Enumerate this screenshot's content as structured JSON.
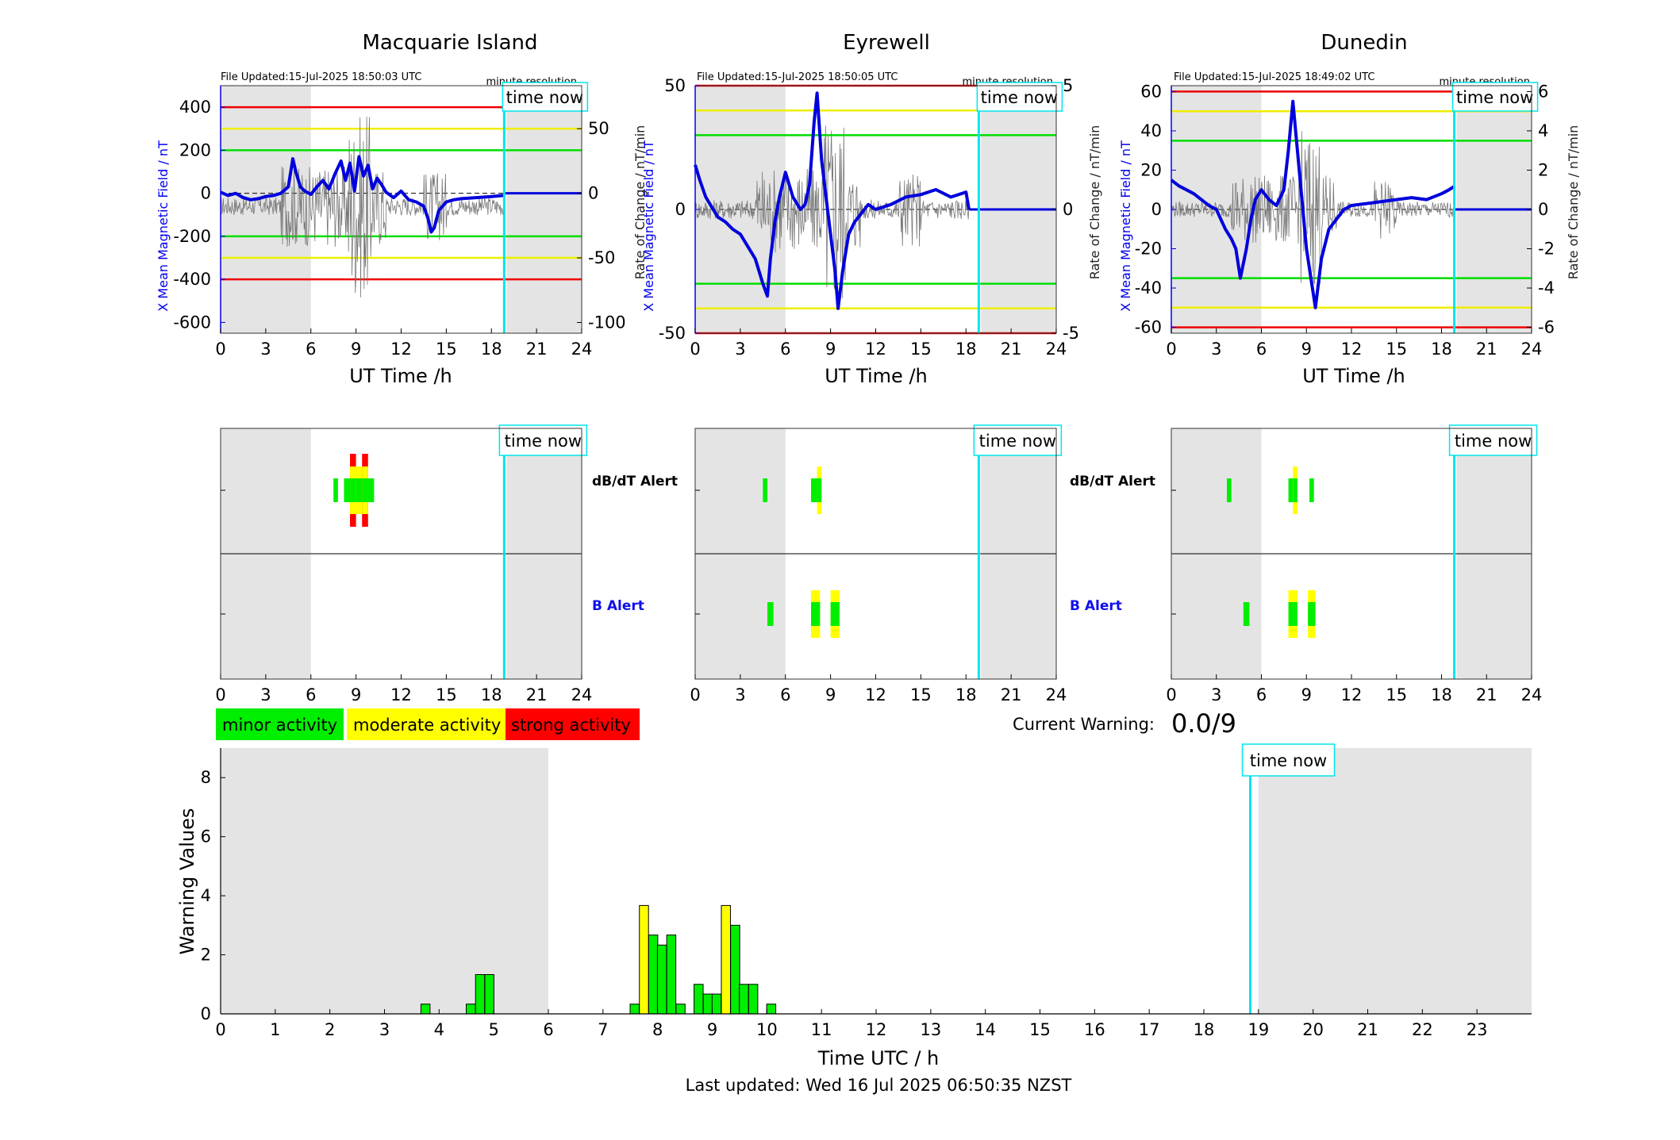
{
  "time_now_label": "time now",
  "minute_resolution_label": "minute resolution",
  "ut_xlabel": "UT Time /h",
  "left_ylabel": "X Mean Magnetic Field / nT",
  "right_ylabel": "Rate of Change / nT/min",
  "alert_labels": {
    "dbdt": "dB/dT Alert",
    "b": "B Alert"
  },
  "legend": [
    {
      "label": "minor activity",
      "color": "#00ee00"
    },
    {
      "label": "moderate activity",
      "color": "#ffff00"
    },
    {
      "label": "strong activity",
      "color": "#ff0000"
    }
  ],
  "current_warning": {
    "label": "Current Warning:",
    "value": "0.0/9"
  },
  "last_updated": "Last updated: Wed 16 Jul 2025 06:50:35 NZST",
  "colors": {
    "field": "#0000dd",
    "time_now": "#00e5ee",
    "night_shade": "#e4e4e4",
    "red": "#ee0000",
    "yellow": "#eeee00",
    "green": "#00dd00"
  },
  "chart_data": [
    {
      "type": "line",
      "title": "Macquarie Island",
      "file_updated": "File Updated:15-Jul-2025 18:50:03 UTC",
      "xlabel": "UT Time /h",
      "ylabel": "X Mean Magnetic Field / nT",
      "y2label": "Rate of Change / nT/min",
      "xlim": [
        0,
        24
      ],
      "ylim": [
        -650,
        500
      ],
      "y2lim": [
        -108.3,
        83.3
      ],
      "xticks": [
        0,
        3,
        6,
        9,
        12,
        15,
        18,
        21,
        24
      ],
      "yticks": [
        400,
        200,
        0,
        -200,
        -400,
        -600
      ],
      "y2ticks": [
        50,
        0,
        -50,
        -100
      ],
      "thresholds": {
        "red": [
          400,
          -400
        ],
        "yellow": [
          300,
          -300
        ],
        "green": [
          200,
          -200
        ]
      },
      "night_shading": [
        [
          0,
          6
        ],
        [
          19,
          24
        ]
      ],
      "time_now": 18.85,
      "x_mean_field": {
        "x": [
          0,
          0.5,
          1,
          1.5,
          2,
          2.5,
          3,
          3.5,
          4,
          4.5,
          4.8,
          5,
          5.3,
          5.6,
          6,
          6.4,
          6.8,
          7.2,
          7.6,
          8,
          8.3,
          8.6,
          8.9,
          9.2,
          9.5,
          9.8,
          10.1,
          10.4,
          10.7,
          11,
          11.5,
          12,
          12.5,
          13,
          13.5,
          13.8,
          14,
          14.2,
          14.5,
          15,
          15.5,
          16,
          17,
          18,
          18.8
        ],
        "y": [
          5,
          -10,
          0,
          -20,
          -30,
          -25,
          -15,
          -10,
          0,
          30,
          160,
          100,
          30,
          10,
          -5,
          30,
          60,
          20,
          90,
          150,
          60,
          140,
          10,
          170,
          80,
          130,
          20,
          70,
          40,
          5,
          -20,
          10,
          -30,
          -40,
          -60,
          -120,
          -180,
          -160,
          -80,
          -40,
          -30,
          -25,
          -20,
          -15,
          -10
        ]
      },
      "x_mean_field_after": {
        "x": [
          18.9,
          24
        ],
        "y": [
          0,
          0
        ]
      },
      "rate_of_change_range": {
        "x": [
          0,
          18.8
        ],
        "y": [
          -100,
          80
        ]
      },
      "alerts": {
        "dbdt": [
          {
            "start": 7.5,
            "end": 7.8,
            "level": "minor"
          },
          {
            "start": 8.2,
            "end": 8.6,
            "level": "minor"
          },
          {
            "start": 8.6,
            "end": 9.0,
            "level": "strong"
          },
          {
            "start": 9.0,
            "end": 9.4,
            "level": "moderate"
          },
          {
            "start": 9.4,
            "end": 9.8,
            "level": "strong"
          },
          {
            "start": 9.8,
            "end": 10.2,
            "level": "minor"
          }
        ],
        "b": []
      }
    },
    {
      "type": "line",
      "title": "Eyrewell",
      "file_updated": "File Updated:15-Jul-2025 18:50:05 UTC",
      "xlabel": "UT Time /h",
      "ylabel": "X Mean Magnetic Field / nT",
      "y2label": "Rate of Change / nT/min",
      "xlim": [
        0,
        24
      ],
      "ylim": [
        -50,
        50
      ],
      "y2lim": [
        -5,
        5
      ],
      "xticks": [
        0,
        3,
        6,
        9,
        12,
        15,
        18,
        21,
        24
      ],
      "yticks": [
        50,
        0,
        -50
      ],
      "y2ticks": [
        5,
        0,
        -5
      ],
      "thresholds": {
        "red": [
          50,
          -50
        ],
        "yellow": [
          40,
          -40
        ],
        "green": [
          30,
          -30
        ]
      },
      "night_shading": [
        [
          0,
          6
        ],
        [
          19,
          24
        ]
      ],
      "time_now": 18.85,
      "x_mean_field": {
        "x": [
          0,
          0.3,
          0.7,
          1,
          1.5,
          2,
          2.5,
          3,
          3.5,
          4,
          4.5,
          4.8,
          5,
          5.3,
          5.6,
          6,
          6.5,
          7,
          7.3,
          7.6,
          7.9,
          8.1,
          8.4,
          8.7,
          9,
          9.3,
          9.5,
          9.8,
          10.2,
          10.6,
          11,
          11.5,
          12,
          13,
          14,
          15,
          16,
          17,
          18,
          18.2
        ],
        "y": [
          18,
          12,
          5,
          2,
          -3,
          -5,
          -8,
          -10,
          -15,
          -20,
          -30,
          -35,
          -20,
          -5,
          5,
          15,
          5,
          0,
          2,
          10,
          35,
          47,
          20,
          5,
          -10,
          -25,
          -40,
          -25,
          -10,
          -5,
          -2,
          2,
          0,
          2,
          5,
          6,
          8,
          5,
          7,
          0
        ]
      },
      "x_mean_field_after": {
        "x": [
          18.2,
          24
        ],
        "y": [
          0,
          0
        ]
      },
      "rate_of_change_range": {
        "x": [
          0,
          18.2
        ],
        "y": [
          -5,
          5
        ]
      },
      "alerts": {
        "dbdt": [
          {
            "start": 4.5,
            "end": 4.8,
            "level": "minor"
          },
          {
            "start": 7.7,
            "end": 8.1,
            "level": "minor"
          },
          {
            "start": 8.1,
            "end": 8.4,
            "level": "moderate"
          }
        ],
        "b": [
          {
            "start": 4.8,
            "end": 5.2,
            "level": "minor"
          },
          {
            "start": 7.7,
            "end": 8.3,
            "level": "moderate"
          },
          {
            "start": 9.0,
            "end": 9.6,
            "level": "moderate"
          }
        ]
      }
    },
    {
      "type": "line",
      "title": "Dunedin",
      "file_updated": "File Updated:15-Jul-2025 18:49:02 UTC",
      "xlabel": "UT Time /h",
      "ylabel": "X Mean Magnetic Field / nT",
      "y2label": "Rate of Change / nT/min",
      "xlim": [
        0,
        24
      ],
      "ylim": [
        -63,
        63
      ],
      "y2lim": [
        -6.3,
        6.3
      ],
      "xticks": [
        0,
        3,
        6,
        9,
        12,
        15,
        18,
        21,
        24
      ],
      "yticks": [
        60,
        40,
        20,
        0,
        -20,
        -40,
        -60
      ],
      "y2ticks": [
        6,
        4,
        2,
        0,
        -2,
        -4,
        -6
      ],
      "thresholds": {
        "red": [
          60,
          -60
        ],
        "yellow": [
          50,
          -50
        ],
        "green": [
          35,
          -35
        ]
      },
      "night_shading": [
        [
          0,
          6
        ],
        [
          19,
          24
        ]
      ],
      "time_now": 18.85,
      "x_mean_field": {
        "x": [
          0,
          0.5,
          1,
          1.5,
          2,
          2.5,
          3,
          3.3,
          3.6,
          4,
          4.3,
          4.6,
          5,
          5.3,
          5.6,
          6,
          6.5,
          7,
          7.5,
          7.8,
          8.1,
          8.4,
          8.7,
          9,
          9.3,
          9.6,
          10,
          10.5,
          11,
          11.5,
          12,
          13,
          14,
          15,
          16,
          17,
          18,
          18.5,
          18.9
        ],
        "y": [
          15,
          12,
          10,
          8,
          5,
          2,
          0,
          -5,
          -10,
          -15,
          -20,
          -35,
          -20,
          -5,
          5,
          10,
          5,
          2,
          10,
          30,
          55,
          30,
          5,
          -20,
          -35,
          -50,
          -25,
          -10,
          -5,
          0,
          2,
          3,
          4,
          5,
          6,
          5,
          8,
          10,
          12
        ]
      },
      "x_mean_field_after": {
        "x": [
          18.9,
          24
        ],
        "y": [
          0,
          0
        ]
      },
      "rate_of_change_range": {
        "x": [
          0,
          18.9
        ],
        "y": [
          -5,
          5
        ]
      },
      "alerts": {
        "dbdt": [
          {
            "start": 3.7,
            "end": 4.0,
            "level": "minor"
          },
          {
            "start": 7.8,
            "end": 8.1,
            "level": "minor"
          },
          {
            "start": 8.1,
            "end": 8.4,
            "level": "moderate"
          },
          {
            "start": 9.2,
            "end": 9.5,
            "level": "minor"
          }
        ],
        "b": [
          {
            "start": 4.8,
            "end": 5.2,
            "level": "minor"
          },
          {
            "start": 7.8,
            "end": 8.4,
            "level": "moderate"
          },
          {
            "start": 9.1,
            "end": 9.6,
            "level": "moderate"
          }
        ]
      }
    },
    {
      "type": "bar",
      "title": "",
      "xlabel": "Time UTC / h",
      "ylabel": "Warning Values",
      "xlim": [
        0,
        24
      ],
      "ylim": [
        0,
        9
      ],
      "xticks": [
        0,
        1,
        2,
        3,
        4,
        5,
        6,
        7,
        8,
        9,
        10,
        11,
        12,
        13,
        14,
        15,
        16,
        17,
        18,
        19,
        20,
        21,
        22,
        23
      ],
      "yticks": [
        0,
        2,
        4,
        6,
        8
      ],
      "night_shading": [
        [
          0,
          6
        ],
        [
          19,
          24
        ]
      ],
      "time_now": 18.85,
      "bar_width_h": 0.1667,
      "bars": [
        {
          "x": 3.75,
          "value": 0.33,
          "level": "minor"
        },
        {
          "x": 4.58,
          "value": 0.33,
          "level": "minor"
        },
        {
          "x": 4.75,
          "value": 1.33,
          "level": "minor"
        },
        {
          "x": 4.92,
          "value": 1.33,
          "level": "minor"
        },
        {
          "x": 7.58,
          "value": 0.33,
          "level": "minor"
        },
        {
          "x": 7.75,
          "value": 3.67,
          "level": "moderate"
        },
        {
          "x": 7.92,
          "value": 2.67,
          "level": "minor"
        },
        {
          "x": 8.08,
          "value": 2.33,
          "level": "minor"
        },
        {
          "x": 8.25,
          "value": 2.67,
          "level": "minor"
        },
        {
          "x": 8.42,
          "value": 0.33,
          "level": "minor"
        },
        {
          "x": 8.75,
          "value": 1.0,
          "level": "minor"
        },
        {
          "x": 8.92,
          "value": 0.67,
          "level": "minor"
        },
        {
          "x": 9.08,
          "value": 0.67,
          "level": "minor"
        },
        {
          "x": 9.25,
          "value": 3.67,
          "level": "moderate"
        },
        {
          "x": 9.42,
          "value": 3.0,
          "level": "minor"
        },
        {
          "x": 9.58,
          "value": 1.0,
          "level": "minor"
        },
        {
          "x": 9.75,
          "value": 1.0,
          "level": "minor"
        },
        {
          "x": 10.08,
          "value": 0.33,
          "level": "minor"
        }
      ]
    }
  ]
}
